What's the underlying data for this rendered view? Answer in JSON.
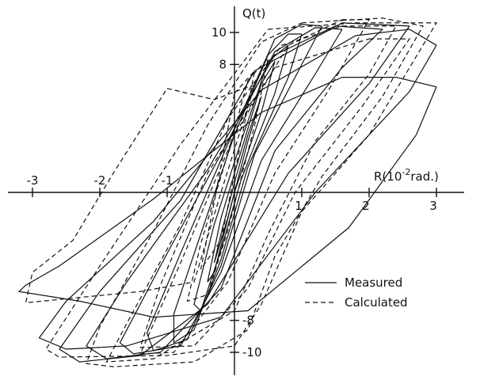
{
  "chart_data": {
    "type": "line",
    "title": "",
    "xaxis": {
      "ticks": [
        {
          "value": -3,
          "label": "-3"
        },
        {
          "value": -2,
          "label": "-2"
        },
        {
          "value": -1,
          "label": "-1"
        },
        {
          "value": 1,
          "label": "1"
        },
        {
          "value": 2,
          "label": "2"
        },
        {
          "value": 3,
          "label": "3"
        }
      ],
      "range": [
        -3.6,
        3.6
      ]
    },
    "yaxis": {
      "ticks": [
        {
          "value": 10,
          "label": "10"
        },
        {
          "value": 8,
          "label": "8"
        },
        {
          "value": -8,
          "label": "-8"
        },
        {
          "value": -10,
          "label": "-10"
        }
      ],
      "range": [
        -12,
        12
      ]
    },
    "x_label_parts": {
      "base": "R(10",
      "sup": "-2",
      "tail": "rad.)"
    },
    "y_label": "Q(t)",
    "legend": {
      "position": "lower-right",
      "items": [
        {
          "label": "Measured",
          "style": "solid"
        },
        {
          "label": "Calculated",
          "style": "dashed"
        }
      ]
    },
    "series": [
      {
        "name": "Measured",
        "style": "solid",
        "loops": [
          [
            [
              3.0,
              6.6
            ],
            [
              2.7,
              3.6
            ],
            [
              1.7,
              -2.2
            ],
            [
              0.2,
              -7.4
            ],
            [
              -1.2,
              -7.8
            ],
            [
              -2.3,
              -6.8
            ],
            [
              -3.2,
              -6.2
            ],
            [
              -3.1,
              -5.8
            ],
            [
              -2.6,
              -4.6
            ],
            [
              -1.2,
              -0.4
            ],
            [
              0.4,
              5.0
            ],
            [
              1.6,
              7.2
            ],
            [
              2.4,
              7.2
            ],
            [
              3.0,
              6.6
            ]
          ],
          [
            [
              3.0,
              9.2
            ],
            [
              2.6,
              6.3
            ],
            [
              1.2,
              0.0
            ],
            [
              -0.2,
              -7.8
            ],
            [
              -1.6,
              -9.6
            ],
            [
              -2.5,
              -9.8
            ],
            [
              -2.9,
              -9.1
            ],
            [
              -2.5,
              -6.8
            ],
            [
              -1.2,
              -1.8
            ],
            [
              0.4,
              6.4
            ],
            [
              1.8,
              9.8
            ],
            [
              2.6,
              10.2
            ],
            [
              3.0,
              9.2
            ]
          ],
          [
            [
              2.6,
              10.4
            ],
            [
              2.0,
              6.8
            ],
            [
              0.8,
              1.2
            ],
            [
              -0.4,
              -7.0
            ],
            [
              -1.4,
              -10.2
            ],
            [
              -2.3,
              -10.6
            ],
            [
              -2.6,
              -9.8
            ],
            [
              -2.0,
              -6.2
            ],
            [
              -0.8,
              -0.5
            ],
            [
              0.3,
              7.6
            ],
            [
              1.6,
              10.6
            ],
            [
              2.6,
              10.4
            ]
          ],
          [
            [
              2.2,
              10.2
            ],
            [
              1.6,
              7.8
            ],
            [
              0.6,
              2.6
            ],
            [
              -0.2,
              -6.0
            ],
            [
              -1.1,
              -10.0
            ],
            [
              -1.9,
              -10.4
            ],
            [
              -2.2,
              -9.6
            ],
            [
              -1.6,
              -5.6
            ],
            [
              -0.4,
              1.4
            ],
            [
              0.6,
              8.6
            ],
            [
              1.5,
              10.4
            ],
            [
              2.2,
              10.2
            ]
          ],
          [
            [
              1.6,
              10.2
            ],
            [
              1.2,
              7.4
            ],
            [
              0.4,
              2.0
            ],
            [
              -0.2,
              -5.0
            ],
            [
              -0.8,
              -9.6
            ],
            [
              -1.5,
              -10.1
            ],
            [
              -1.7,
              -9.4
            ],
            [
              -1.1,
              -4.6
            ],
            [
              -0.2,
              2.4
            ],
            [
              0.6,
              8.8
            ],
            [
              1.2,
              10.3
            ],
            [
              1.6,
              10.2
            ]
          ],
          [
            [
              1.3,
              10.4
            ],
            [
              1.0,
              8.0
            ],
            [
              0.3,
              2.4
            ],
            [
              -0.2,
              -4.6
            ],
            [
              -0.7,
              -9.2
            ],
            [
              -1.2,
              -9.9
            ],
            [
              -1.3,
              -8.8
            ],
            [
              -0.8,
              -3.8
            ],
            [
              -0.1,
              3.0
            ],
            [
              0.6,
              9.6
            ],
            [
              1.0,
              10.5
            ],
            [
              1.3,
              10.4
            ]
          ],
          [
            [
              1.0,
              9.9
            ],
            [
              0.8,
              7.2
            ],
            [
              0.2,
              1.6
            ],
            [
              -0.2,
              -4.2
            ],
            [
              -0.6,
              -8.6
            ],
            [
              -0.9,
              -9.4
            ],
            [
              -0.9,
              -7.6
            ],
            [
              -0.5,
              -2.6
            ],
            [
              0.0,
              3.6
            ],
            [
              0.5,
              8.6
            ],
            [
              0.8,
              9.9
            ],
            [
              1.0,
              9.9
            ]
          ],
          [
            [
              0.8,
              9.2
            ],
            [
              0.6,
              6.2
            ],
            [
              0.1,
              0.8
            ],
            [
              -0.2,
              -3.6
            ],
            [
              -0.5,
              -7.4
            ],
            [
              -0.6,
              -7.0
            ],
            [
              -0.3,
              -2.0
            ],
            [
              0.1,
              3.2
            ],
            [
              0.5,
              8.2
            ],
            [
              0.8,
              9.2
            ]
          ],
          [
            [
              0.6,
              8.2
            ],
            [
              0.4,
              5.0
            ],
            [
              0.0,
              0.0
            ],
            [
              -0.3,
              -5.0
            ],
            [
              -0.4,
              -5.6
            ],
            [
              -0.2,
              -1.6
            ],
            [
              0.1,
              2.6
            ],
            [
              0.4,
              6.8
            ],
            [
              0.6,
              8.2
            ]
          ],
          [
            [
              0.4,
              6.0
            ],
            [
              0.2,
              3.2
            ],
            [
              -0.1,
              -1.6
            ],
            [
              -0.3,
              -4.4
            ],
            [
              -0.2,
              -2.6
            ],
            [
              0.0,
              0.6
            ],
            [
              0.2,
              3.6
            ],
            [
              0.4,
              6.0
            ]
          ]
        ]
      },
      {
        "name": "Calculated",
        "style": "dashed",
        "loops": [
          [
            [
              -1.0,
              6.5
            ],
            [
              -0.3,
              5.8
            ],
            [
              0.2,
              6.6
            ],
            [
              0.3,
              6.7
            ],
            [
              -0.2,
              0.0
            ],
            [
              -0.6,
              -5.6
            ],
            [
              -1.4,
              -6.2
            ],
            [
              -3.1,
              -6.9
            ],
            [
              -3.0,
              -5.0
            ],
            [
              -2.4,
              -3.0
            ],
            [
              -1.8,
              1.2
            ],
            [
              -1.0,
              6.5
            ]
          ],
          [
            [
              0.5,
              10.2
            ],
            [
              1.8,
              10.6
            ],
            [
              3.0,
              10.6
            ],
            [
              2.0,
              3.6
            ],
            [
              1.0,
              -1.2
            ],
            [
              0.4,
              -7.0
            ],
            [
              0.0,
              -9.6
            ],
            [
              -1.0,
              -10.2
            ],
            [
              -2.6,
              -10.3
            ],
            [
              -2.8,
              -9.8
            ],
            [
              -2.0,
              -4.6
            ],
            [
              -0.8,
              3.0
            ],
            [
              0.5,
              10.2
            ]
          ],
          [
            [
              1.0,
              10.6
            ],
            [
              2.2,
              10.9
            ],
            [
              2.8,
              10.4
            ],
            [
              2.2,
              6.0
            ],
            [
              1.3,
              1.0
            ],
            [
              0.6,
              -4.0
            ],
            [
              0.2,
              -8.6
            ],
            [
              -0.6,
              -10.6
            ],
            [
              -1.8,
              -10.9
            ],
            [
              -2.2,
              -10.7
            ],
            [
              -2.0,
              -8.4
            ],
            [
              -1.2,
              -2.4
            ],
            [
              -0.4,
              4.2
            ],
            [
              0.4,
              9.4
            ],
            [
              1.0,
              10.6
            ]
          ],
          [
            [
              1.6,
              10.4
            ],
            [
              2.4,
              10.4
            ],
            [
              2.0,
              7.4
            ],
            [
              1.2,
              3.2
            ],
            [
              0.5,
              -2.6
            ],
            [
              0.0,
              -7.4
            ],
            [
              -1.2,
              -10.4
            ],
            [
              -1.9,
              -10.6
            ],
            [
              -1.6,
              -8.2
            ],
            [
              -0.8,
              -2.0
            ],
            [
              -0.1,
              4.6
            ],
            [
              0.7,
              9.2
            ],
            [
              1.6,
              10.4
            ]
          ],
          [
            [
              2.0,
              9.6
            ],
            [
              2.6,
              9.6
            ],
            [
              1.9,
              5.4
            ],
            [
              0.9,
              0.0
            ],
            [
              0.2,
              -6.0
            ],
            [
              -0.6,
              -9.6
            ],
            [
              -1.4,
              -9.7
            ],
            [
              -1.1,
              -5.8
            ],
            [
              -0.4,
              1.2
            ],
            [
              0.6,
              7.8
            ],
            [
              2.0,
              9.6
            ]
          ],
          [
            [
              0.2,
              7.0
            ],
            [
              0.5,
              8.4
            ],
            [
              0.3,
              4.2
            ],
            [
              -0.1,
              -2.4
            ],
            [
              -0.4,
              -6.4
            ],
            [
              -0.7,
              -6.8
            ],
            [
              -0.5,
              -3.2
            ],
            [
              -0.1,
              2.4
            ],
            [
              0.2,
              7.0
            ]
          ],
          [
            [
              0.0,
              6.2
            ],
            [
              0.3,
              7.6
            ],
            [
              0.1,
              3.2
            ],
            [
              -0.2,
              -3.0
            ],
            [
              -0.5,
              -4.8
            ],
            [
              -0.3,
              -0.6
            ],
            [
              0.0,
              6.2
            ]
          ],
          [
            [
              1.6,
              10.8
            ],
            [
              2.0,
              10.8
            ],
            [
              1.4,
              6.4
            ],
            [
              0.6,
              1.2
            ],
            [
              -0.1,
              -5.6
            ],
            [
              -0.9,
              -10.0
            ],
            [
              -1.4,
              -10.1
            ],
            [
              -0.8,
              -4.4
            ],
            [
              0.0,
              3.6
            ],
            [
              0.8,
              9.2
            ],
            [
              1.6,
              10.8
            ]
          ]
        ]
      }
    ]
  }
}
